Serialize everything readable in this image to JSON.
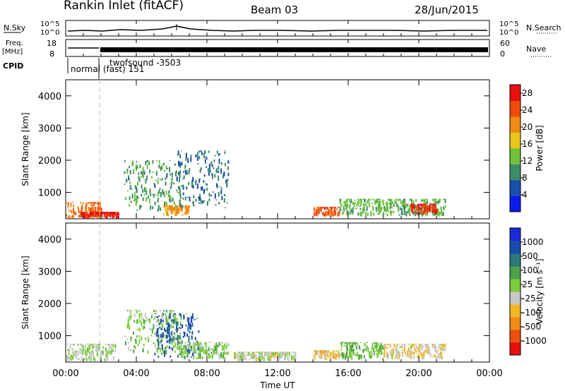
{
  "header": {
    "station": "Rankin Inlet (fitACF)",
    "beam": "Beam 03",
    "date": "28/Jun/2015"
  },
  "noise_panel": {
    "left_label": "N.Sky",
    "right_label": "N.Search",
    "y_ticks": [
      "10^5",
      "10^0"
    ]
  },
  "freq_panel": {
    "left_label_1": "Freq.",
    "left_label_2": "[MHz]",
    "left_ticks": [
      "18",
      "8"
    ],
    "right_label": "Nave",
    "right_ticks": [
      "60",
      "0"
    ]
  },
  "cpid": {
    "label": "CPID",
    "programs": [
      "normal (fast) 151",
      "twofsound -3503"
    ]
  },
  "x_axis": {
    "label": "Time UT",
    "ticks": [
      "00:00",
      "04:00",
      "08:00",
      "12:00",
      "16:00",
      "20:00",
      "00:00"
    ]
  },
  "colors": {
    "power_scale": [
      "#0a1cf0",
      "#1b4fae",
      "#3e8c66",
      "#6fc23a",
      "#e8c61a",
      "#f08a12",
      "#f04a10",
      "#e81010"
    ],
    "velocity_scale": [
      "#e81010",
      "#ee5010",
      "#f08a12",
      "#f2b820",
      "#c8c8c8",
      "#7acc3a",
      "#4ea24a",
      "#2a7a7a",
      "#1a4cae",
      "#1a2ad8"
    ],
    "ground_scatter": "#c8c8c8",
    "marker_line": "#bbbbbb"
  },
  "chart_data": [
    {
      "type": "heatmap",
      "title": "Power",
      "xlabel": "Time UT",
      "ylabel": "Slant Range [km]",
      "y_ticks": [
        "1000",
        "2000",
        "3000",
        "4000"
      ],
      "xlim": [
        "00:00",
        "24:00"
      ],
      "ylim": [
        180,
        4500
      ],
      "colorbar": {
        "label": "Power [dB]",
        "ticks": [
          "4",
          "8",
          "12",
          "16",
          "20",
          "24",
          "28"
        ],
        "range": [
          0,
          30
        ]
      },
      "scatter_regions": [
        {
          "t_start": 0.0,
          "t_end": 2.0,
          "r_start": 180,
          "r_end": 700,
          "value": 22
        },
        {
          "t_start": 0.8,
          "t_end": 3.0,
          "r_start": 180,
          "r_end": 400,
          "value": 28
        },
        {
          "t_start": 3.3,
          "t_end": 6.5,
          "r_start": 400,
          "r_end": 2000,
          "value": 10
        },
        {
          "t_start": 5.5,
          "t_end": 7.0,
          "r_start": 250,
          "r_end": 600,
          "value": 20
        },
        {
          "t_start": 6.3,
          "t_end": 9.2,
          "r_start": 500,
          "r_end": 2300,
          "value": 8
        },
        {
          "t_start": 14.0,
          "t_end": 15.5,
          "r_start": 250,
          "r_end": 550,
          "value": 24
        },
        {
          "t_start": 15.5,
          "t_end": 21.5,
          "r_start": 250,
          "r_end": 800,
          "value": 12
        },
        {
          "t_start": 19.5,
          "t_end": 21.0,
          "r_start": 300,
          "r_end": 650,
          "value": 26
        }
      ]
    },
    {
      "type": "heatmap",
      "title": "Velocity",
      "xlabel": "Time UT",
      "ylabel": "Slant Range [km]",
      "y_ticks": [
        "1000",
        "2000",
        "3000",
        "4000"
      ],
      "xlim": [
        "00:00",
        "24:00"
      ],
      "ylim": [
        180,
        4500
      ],
      "colorbar": {
        "label": "Velocity [m s^-1]",
        "ticks": [
          "1000",
          "500",
          "100",
          "25",
          "-25",
          "-100",
          "-500",
          "-1000"
        ],
        "range": [
          -1200,
          1200
        ]
      },
      "scatter_regions": [
        {
          "t_start": 0.0,
          "t_end": 2.8,
          "r_start": 180,
          "r_end": 750,
          "value": 0
        },
        {
          "t_start": 3.3,
          "t_end": 6.5,
          "r_start": 400,
          "r_end": 1800,
          "value": 150
        },
        {
          "t_start": 5.0,
          "t_end": 7.5,
          "r_start": 300,
          "r_end": 1700,
          "value": 800
        },
        {
          "t_start": 6.3,
          "t_end": 9.2,
          "r_start": 250,
          "r_end": 800,
          "value": 100
        },
        {
          "t_start": 9.5,
          "t_end": 13.0,
          "r_start": 200,
          "r_end": 500,
          "value": -80
        },
        {
          "t_start": 14.0,
          "t_end": 15.5,
          "r_start": 250,
          "r_end": 550,
          "value": -300
        },
        {
          "t_start": 15.5,
          "t_end": 18.0,
          "r_start": 250,
          "r_end": 800,
          "value": 200
        },
        {
          "t_start": 18.0,
          "t_end": 21.5,
          "r_start": 250,
          "r_end": 750,
          "value": -200
        }
      ]
    }
  ]
}
